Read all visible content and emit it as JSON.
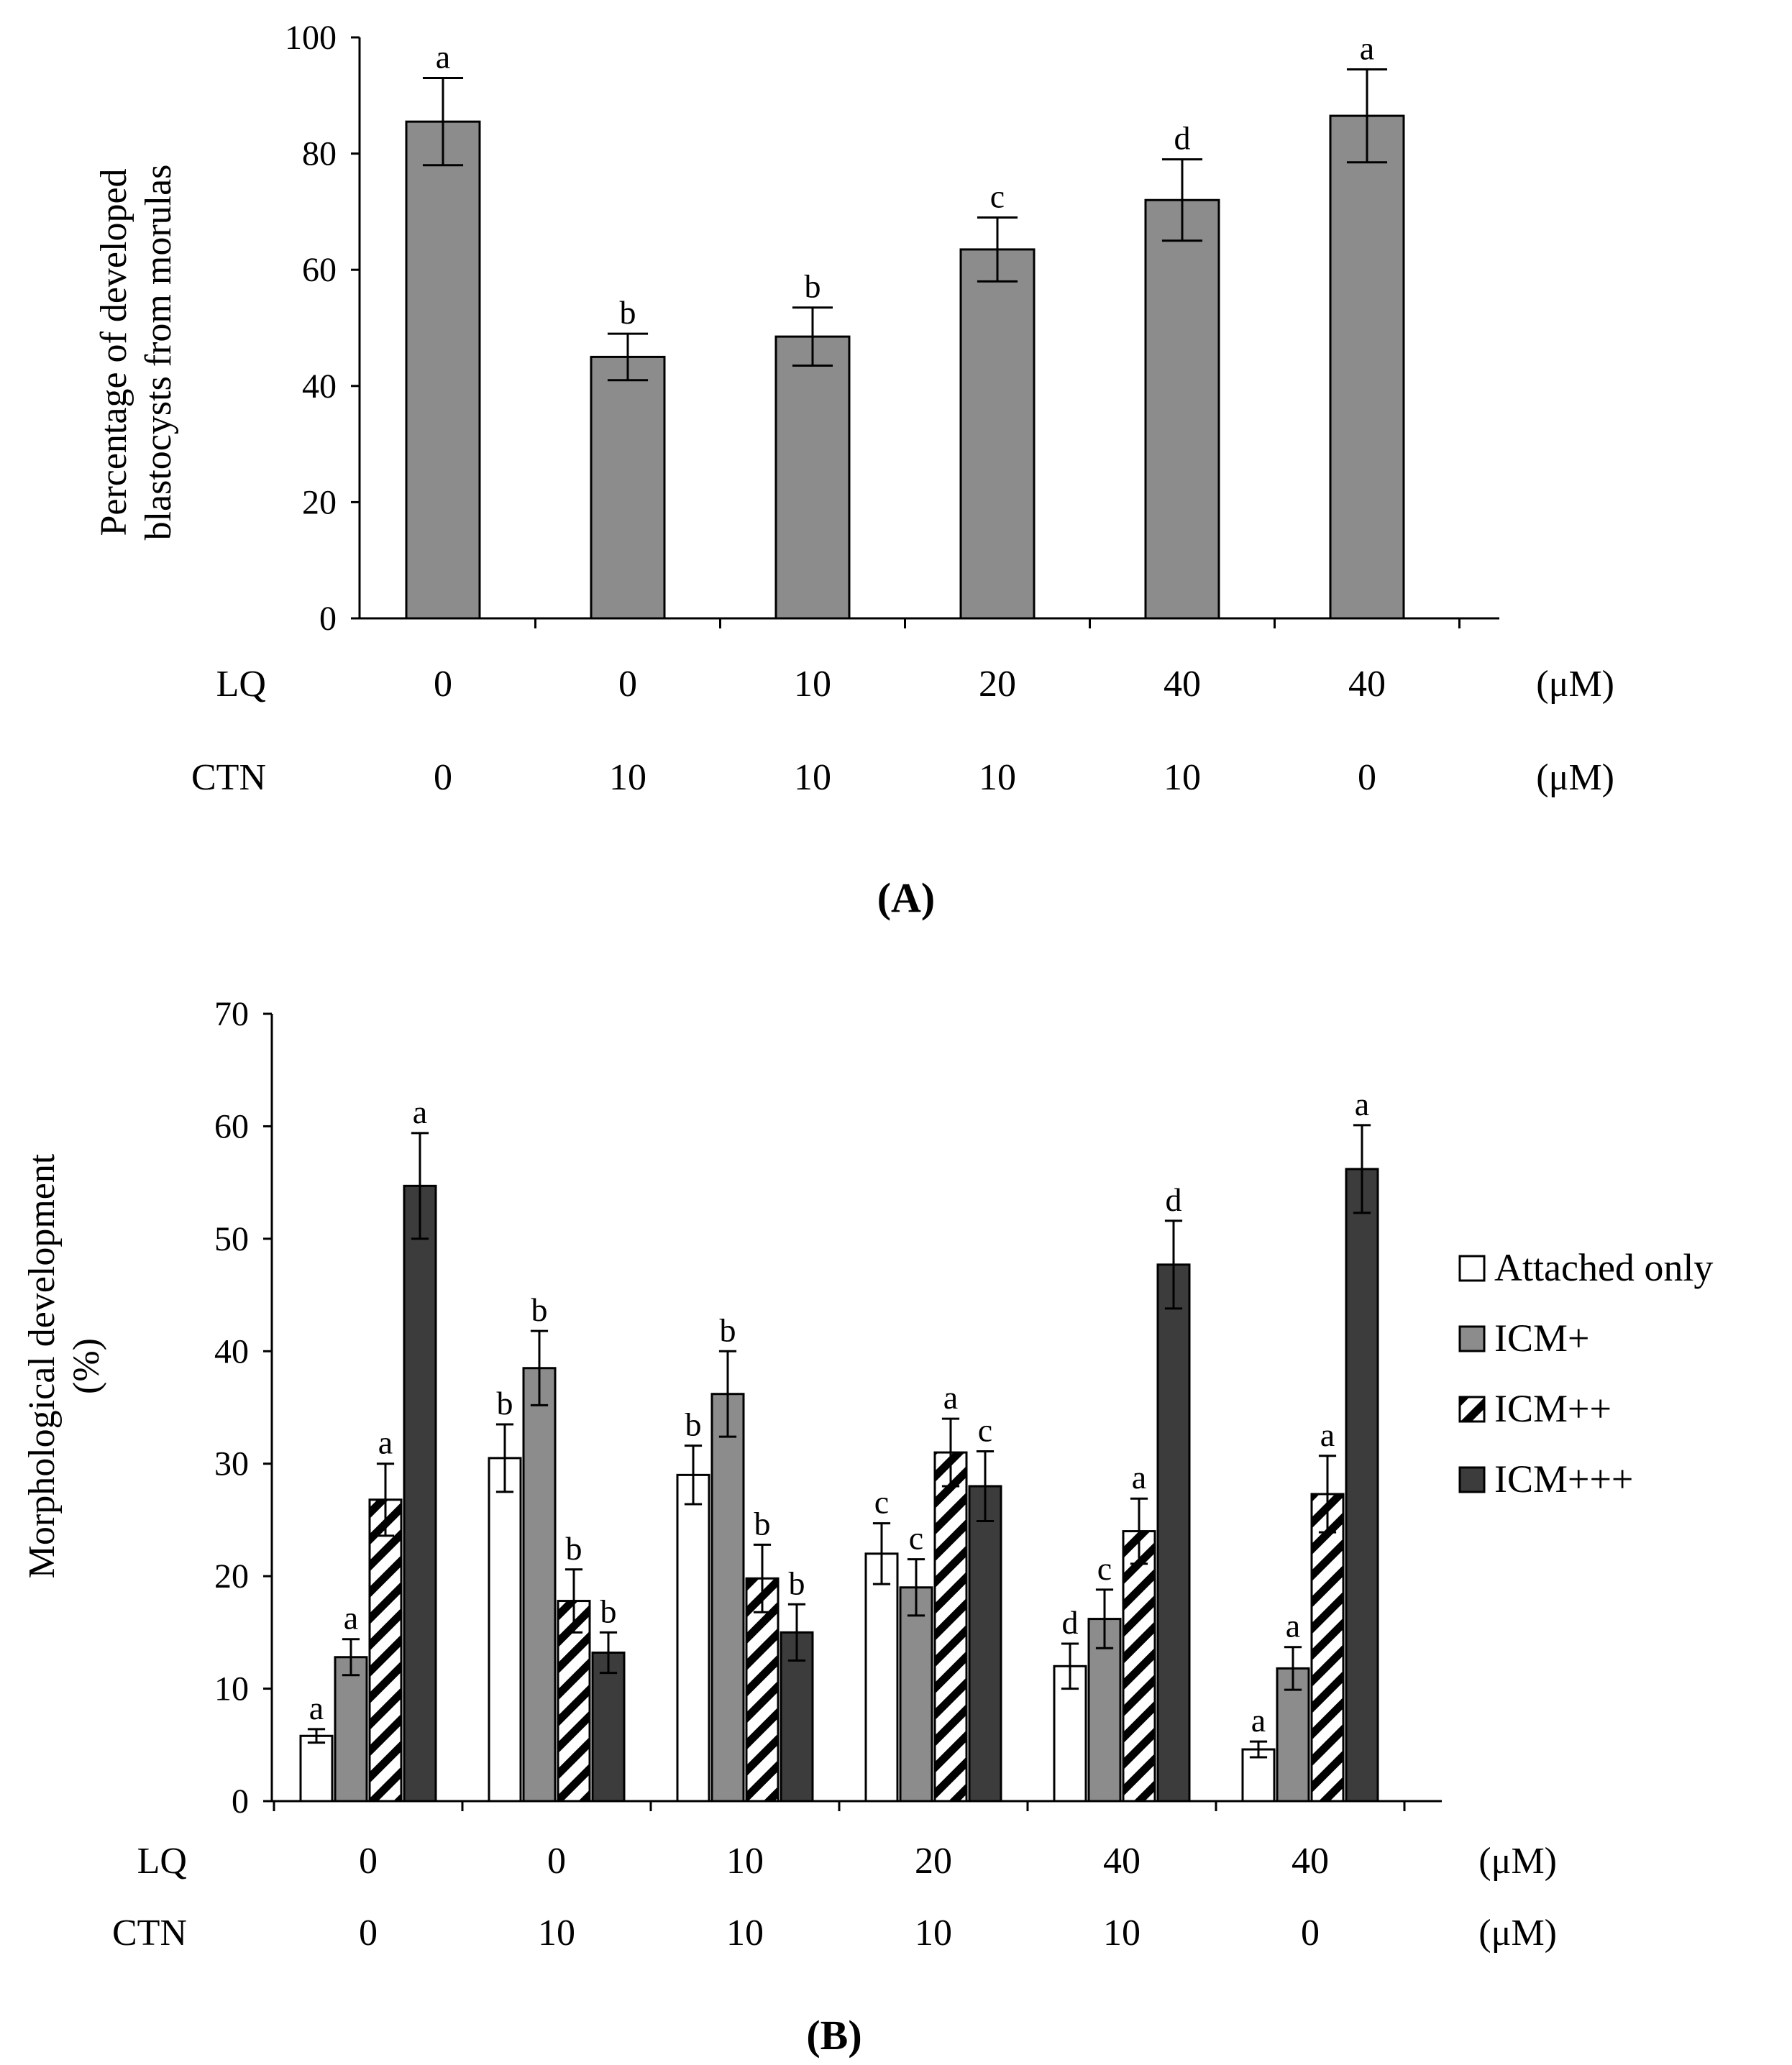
{
  "chart_data": [
    {
      "type": "bar",
      "panel_label": "(A)",
      "ylabel": "Percentage of developed blastocysts from morulas",
      "ylim": [
        0,
        100
      ],
      "yticks": [
        0,
        20,
        40,
        60,
        80,
        100
      ],
      "grid": false,
      "row_labels": [
        "LQ",
        "CTN"
      ],
      "row_units": [
        "(μM)",
        "(μM)"
      ],
      "categories": [
        {
          "LQ": "0",
          "CTN": "0"
        },
        {
          "LQ": "0",
          "CTN": "10"
        },
        {
          "LQ": "10",
          "CTN": "10"
        },
        {
          "LQ": "20",
          "CTN": "10"
        },
        {
          "LQ": "40",
          "CTN": "10"
        },
        {
          "LQ": "40",
          "CTN": "0"
        }
      ],
      "series": [
        {
          "values": [
            85.5,
            45,
            48.5,
            63.5,
            72,
            86.5
          ],
          "errors": [
            7.5,
            4,
            5,
            5.5,
            7,
            8
          ],
          "labels": [
            "a",
            "b",
            "b",
            "c",
            "d",
            "a"
          ],
          "color": "#8c8c8c"
        }
      ]
    },
    {
      "type": "bar",
      "panel_label": "(B)",
      "ylabel": "Morphological development (%)",
      "ylim": [
        0,
        70
      ],
      "yticks": [
        0,
        10,
        20,
        30,
        40,
        50,
        60,
        70
      ],
      "grid": false,
      "legend_position": "right",
      "row_labels": [
        "LQ",
        "CTN"
      ],
      "row_units": [
        "(μM)",
        "(μM)"
      ],
      "categories": [
        {
          "LQ": "0",
          "CTN": "0"
        },
        {
          "LQ": "0",
          "CTN": "10"
        },
        {
          "LQ": "10",
          "CTN": "10"
        },
        {
          "LQ": "20",
          "CTN": "10"
        },
        {
          "LQ": "40",
          "CTN": "10"
        },
        {
          "LQ": "40",
          "CTN": "0"
        }
      ],
      "series": [
        {
          "name": "Attached only",
          "color": "#ffffff",
          "values": [
            5.8,
            30.5,
            29,
            22,
            12,
            4.6
          ],
          "errors": [
            0.6,
            3,
            2.6,
            2.7,
            2,
            0.7
          ],
          "labels": [
            "a",
            "b",
            "b",
            "c",
            "d",
            "a"
          ]
        },
        {
          "name": "ICM+",
          "color": "#8c8c8c",
          "values": [
            12.8,
            38.5,
            36.2,
            19,
            16.2,
            11.8
          ],
          "errors": [
            1.6,
            3.3,
            3.8,
            2.5,
            2.6,
            1.9
          ],
          "labels": [
            "a",
            "b",
            "b",
            "c",
            "c",
            "a"
          ]
        },
        {
          "name": "ICM++",
          "color": "#ffffff",
          "pattern": "diagonal-hatch",
          "values": [
            26.8,
            17.8,
            19.8,
            31,
            24,
            27.3
          ],
          "errors": [
            3.2,
            2.8,
            3,
            3,
            2.9,
            3.4
          ],
          "labels": [
            "a",
            "b",
            "b",
            "a",
            "a",
            "a"
          ]
        },
        {
          "name": "ICM+++",
          "color": "#3c3c3c",
          "values": [
            54.7,
            13.2,
            15,
            28,
            47.7,
            56.2
          ],
          "errors": [
            4.7,
            1.8,
            2.5,
            3.1,
            3.9,
            3.9
          ],
          "labels": [
            "a",
            "b",
            "b",
            "c",
            "d",
            "a"
          ]
        }
      ]
    }
  ]
}
